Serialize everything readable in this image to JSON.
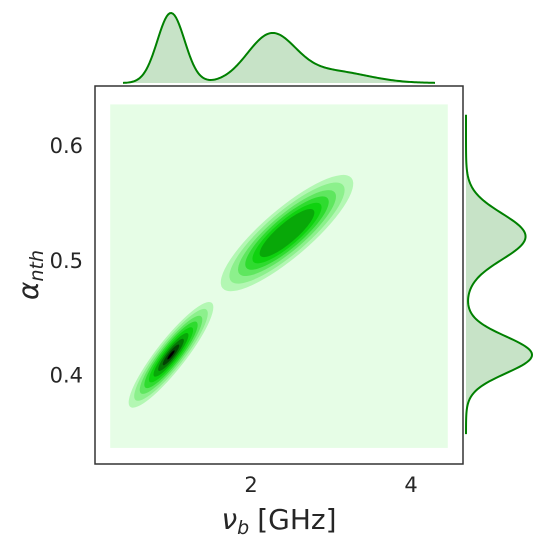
{
  "chart_data": {
    "type": "kde-joint",
    "xlabel": {
      "symbol": "ν",
      "subscript": "b",
      "unit": "[GHz]"
    },
    "ylabel": {
      "symbol": "α",
      "subscript": "nth"
    },
    "xlim": [
      0.05,
      4.65
    ],
    "ylim": [
      0.324,
      0.653
    ],
    "xticks": [
      2,
      4
    ],
    "yticks": [
      0.4,
      0.5,
      0.6
    ],
    "color": "#008000",
    "support": {
      "x": [
        0.24,
        4.46
      ],
      "y": [
        0.338,
        0.637
      ],
      "color": "#e6fde6"
    },
    "contour_levels": [
      2.3,
      2.0,
      1.7,
      1.45,
      1.2,
      0.95,
      0.7,
      0.45,
      0.2
    ],
    "level_colors": [
      "#b3f7b3",
      "#8cf08c",
      "#5fe65f",
      "#2fdb2f",
      "#0fd20f",
      "#08a808",
      "#057605",
      "#034403",
      "#000000"
    ],
    "components": [
      {
        "x": 1.0,
        "y": 0.419,
        "sx": 0.23,
        "sy": 0.02,
        "rho": 0.9,
        "levels": 9
      },
      {
        "x": 2.45,
        "y": 0.525,
        "sx": 0.36,
        "sy": 0.022,
        "rho": 0.85,
        "levels": 6
      }
    ],
    "x_marginal": [
      {
        "mean": 1.0,
        "sd": 0.17,
        "weight": 0.38
      },
      {
        "mean": 2.25,
        "sd": 0.3,
        "weight": 0.45
      },
      {
        "mean": 3.0,
        "sd": 0.45,
        "weight": 0.17
      }
    ],
    "y_marginal": [
      {
        "mean": 0.419,
        "sd": 0.016,
        "weight": 0.47
      },
      {
        "mean": 0.522,
        "sd": 0.02,
        "weight": 0.53
      }
    ]
  }
}
